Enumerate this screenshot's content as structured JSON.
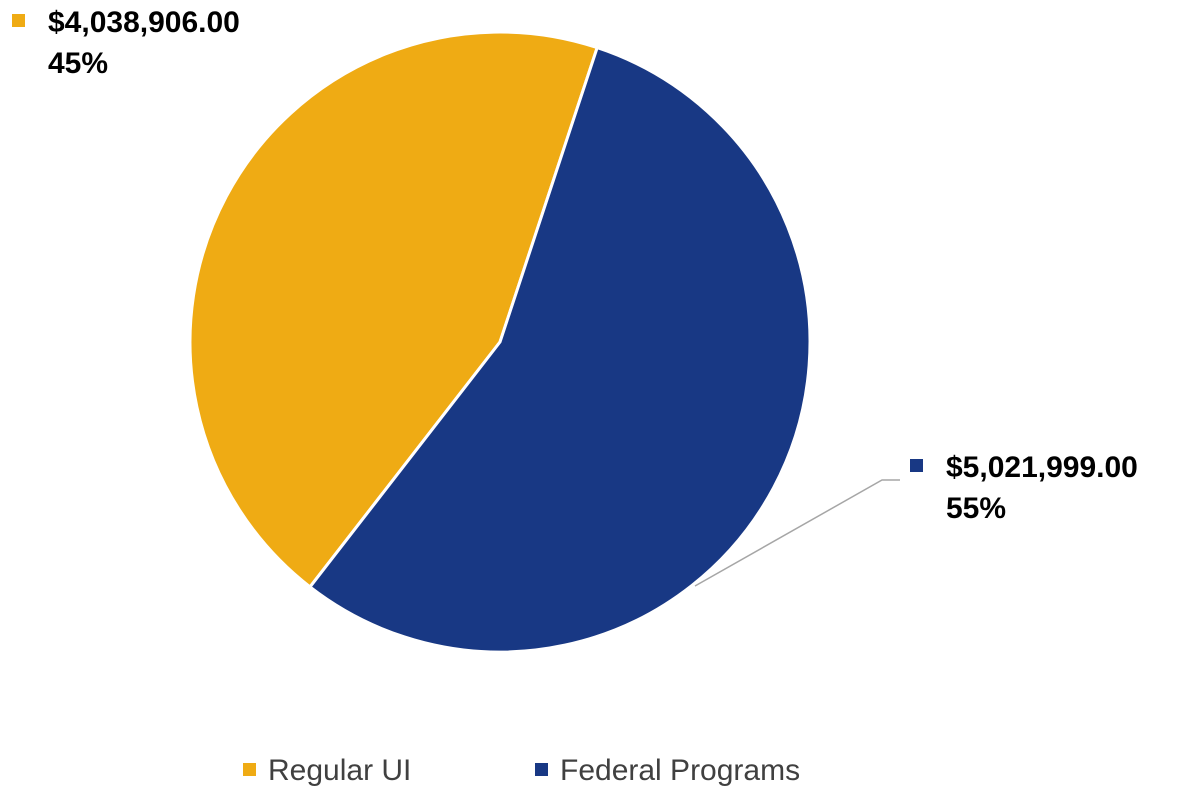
{
  "chart_data": {
    "type": "pie",
    "title": "",
    "slices": [
      {
        "name": "Regular UI",
        "value": 4038906.0,
        "value_label": "$4,038,906.00",
        "percent_label": "45%",
        "color": "#EFAB14"
      },
      {
        "name": "Federal Programs",
        "value": 5021999.0,
        "value_label": "$5,021,999.00",
        "percent_label": "55%",
        "color": "#183884"
      }
    ],
    "legend_position": "bottom",
    "slice_border_color": "#FFFFFF",
    "leader_line_color": "#A6A6A6"
  }
}
